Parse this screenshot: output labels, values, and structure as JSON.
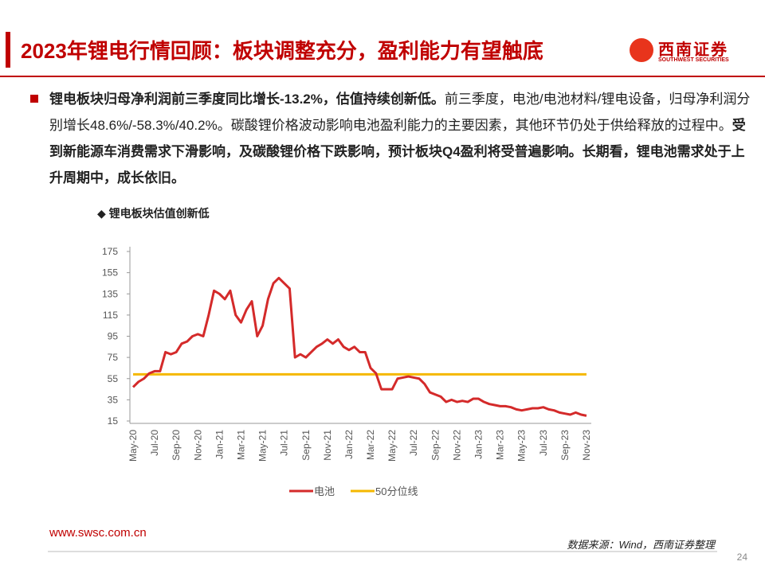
{
  "header": {
    "title": "2023年锂电行情回顾：板块调整充分，盈利能力有望触底",
    "logo_cn": "西南证券",
    "logo_en": "SOUTHWEST SECURITIES"
  },
  "body": {
    "segments": [
      {
        "text": "锂电板块归母净利润前三季度同比增长-13.2%，估值持续创新低。",
        "bold": true
      },
      {
        "text": "前三季度，电池/电池材料/锂电设备，归母净利润分别增长48.6%/-58.3%/40.2%。碳酸锂价格波动影响电池盈利能力的主要因素，其他环节仍处于供给释放的过程中。",
        "bold": false
      },
      {
        "text": "受到新能源车消费需求下滑影响，及碳酸锂价格下跌影响，预计板块Q4盈利将受普遍影响。长期看，锂电池需求处于上升周期中，成长依旧。",
        "bold": true
      }
    ]
  },
  "chart_data": {
    "type": "line",
    "title": "◆ 锂电板块估值创新低",
    "categories": [
      "May-20",
      null,
      null,
      null,
      "Jul-20",
      null,
      null,
      null,
      "Sep-20",
      null,
      null,
      null,
      "Nov-20",
      null,
      null,
      null,
      "Jan-21",
      null,
      null,
      null,
      "Mar-21",
      null,
      null,
      null,
      "May-21",
      null,
      null,
      null,
      "Jul-21",
      null,
      null,
      null,
      "Sep-21",
      null,
      null,
      null,
      "Nov-21",
      null,
      null,
      null,
      "Jan-22",
      null,
      null,
      null,
      "Mar-22",
      null,
      null,
      null,
      "May-22",
      null,
      null,
      null,
      "Jul-22",
      null,
      null,
      null,
      "Sep-22",
      null,
      null,
      null,
      "Nov-22",
      null,
      null,
      null,
      "Jan-23",
      null,
      null,
      null,
      "Mar-23",
      null,
      null,
      null,
      "May-23",
      null,
      null,
      null,
      "Jul-23",
      null,
      null,
      null,
      "Sep-23",
      null,
      null,
      null,
      "Nov-23"
    ],
    "series": [
      {
        "name": "电池",
        "color": "#d42a2a",
        "values": [
          47,
          52,
          55,
          60,
          62,
          62,
          80,
          78,
          80,
          88,
          90,
          95,
          97,
          95,
          115,
          138,
          135,
          130,
          138,
          115,
          108,
          120,
          128,
          95,
          105,
          130,
          145,
          150,
          145,
          140,
          75,
          78,
          75,
          80,
          85,
          88,
          92,
          88,
          92,
          85,
          82,
          85,
          80,
          80,
          65,
          60,
          45,
          45,
          45,
          55,
          56,
          57,
          56,
          55,
          50,
          42,
          40,
          38,
          33,
          35,
          33,
          34,
          33,
          36,
          36,
          33,
          31,
          30,
          29,
          29,
          28,
          26,
          25,
          26,
          27,
          27,
          28,
          26,
          25,
          23,
          22,
          21,
          23,
          21,
          20
        ]
      },
      {
        "name": "50分位线",
        "color": "#f5b800",
        "values": [
          59,
          59,
          59,
          59,
          59,
          59,
          59,
          59,
          59,
          59,
          59,
          59,
          59,
          59,
          59,
          59,
          59,
          59,
          59,
          59,
          59,
          59,
          59,
          59,
          59,
          59,
          59,
          59,
          59,
          59,
          59,
          59,
          59,
          59,
          59,
          59,
          59,
          59,
          59,
          59,
          59,
          59,
          59,
          59,
          59,
          59,
          59,
          59,
          59,
          59,
          59,
          59,
          59,
          59,
          59,
          59,
          59,
          59,
          59,
          59,
          59,
          59,
          59,
          59,
          59,
          59,
          59,
          59,
          59,
          59,
          59,
          59,
          59,
          59,
          59,
          59,
          59,
          59,
          59,
          59,
          59,
          59,
          59,
          59,
          59
        ]
      }
    ],
    "ylim": [
      15,
      175
    ],
    "yticks": [
      15,
      35,
      55,
      75,
      95,
      115,
      135,
      155,
      175
    ]
  },
  "footer": {
    "url": "www.swsc.com.cn",
    "source": "数据来源：Wind，西南证券整理",
    "page": "24"
  }
}
